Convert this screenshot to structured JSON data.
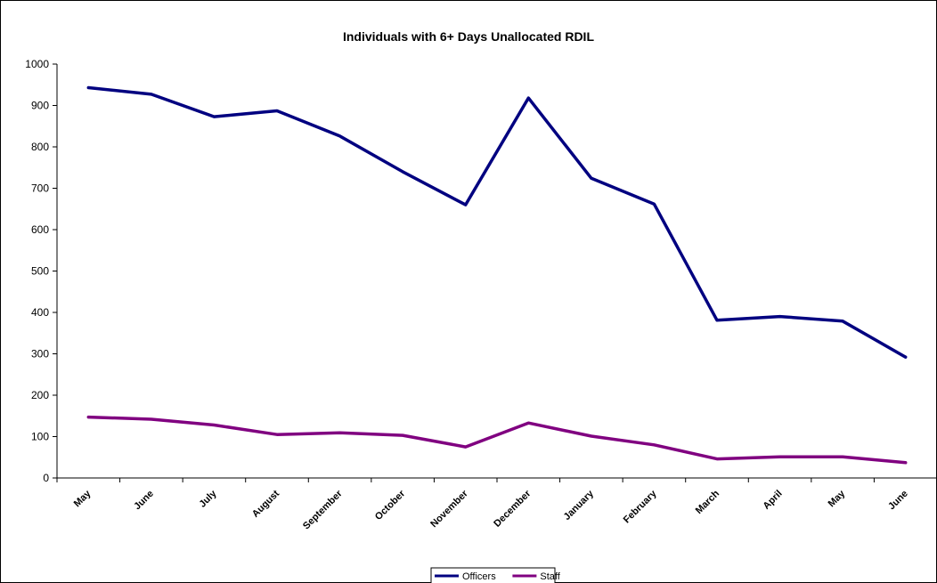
{
  "chart_data": {
    "type": "line",
    "title": "Individuals with 6+ Days Unallocated RDIL",
    "xlabel": "",
    "ylabel": "",
    "ylim": [
      0,
      1000
    ],
    "yticks": [
      0,
      100,
      200,
      300,
      400,
      500,
      600,
      700,
      800,
      900,
      1000
    ],
    "categories": [
      "May",
      "June",
      "July",
      "August",
      "September",
      "October",
      "November",
      "December",
      "January",
      "February",
      "March",
      "April",
      "May",
      "June"
    ],
    "series": [
      {
        "name": "Officers",
        "color": "#000080",
        "values": [
          943,
          927,
          873,
          887,
          826,
          740,
          660,
          918,
          724,
          662,
          381,
          390,
          379,
          292
        ]
      },
      {
        "name": "Staff",
        "color": "#800080",
        "values": [
          147,
          142,
          128,
          105,
          109,
          103,
          75,
          133,
          101,
          80,
          46,
          51,
          51,
          37
        ]
      }
    ],
    "grid": false,
    "legend_position": "bottom"
  }
}
